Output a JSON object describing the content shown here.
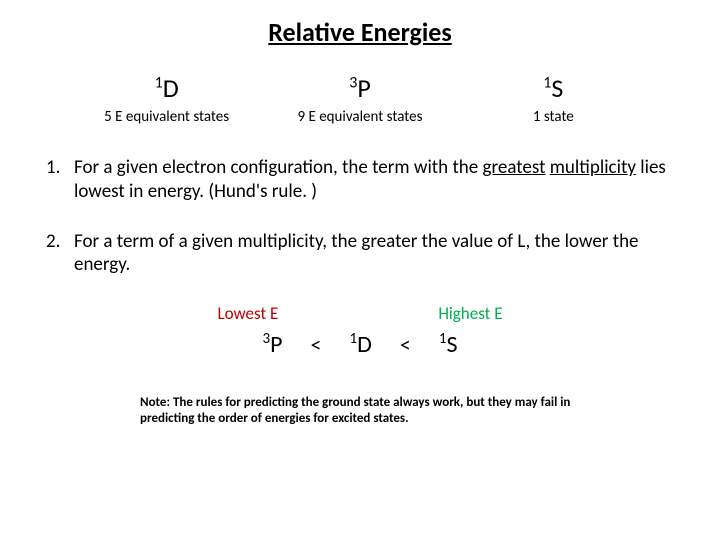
{
  "title": "Relative Energies",
  "terms": [
    {
      "sup": "1",
      "letter": "D",
      "states": "5 E equivalent states"
    },
    {
      "sup": "3",
      "letter": "P",
      "states": "9 E equivalent states"
    },
    {
      "sup": "1",
      "letter": "S",
      "states": "1 state"
    }
  ],
  "rules": [
    {
      "num": "1.",
      "pre": "For a given electron configuration, the term with the ",
      "ul1": "greatest",
      "mid": " ",
      "ul2": "multiplicity",
      "post": " lies lowest in energy.  (Hund's rule. )"
    },
    {
      "num": "2.",
      "text": "For a term of a given multiplicity, the greater the value of L, the lower the energy."
    }
  ],
  "labels": {
    "lowest": "Lowest E",
    "highest": "Highest E"
  },
  "order": [
    {
      "sup": "3",
      "letter": "P"
    },
    {
      "sup": "1",
      "letter": "D"
    },
    {
      "sup": "1",
      "letter": "S"
    }
  ],
  "lt": "<",
  "note": "Note: The rules for predicting the ground state always work, but they may fail in predicting the order of energies for excited states.",
  "colors": {
    "lowest": "#c00000",
    "highest": "#00b050",
    "text": "#000000",
    "background": "#ffffff"
  },
  "fontsize": {
    "title": 26,
    "term": 26,
    "state": 15,
    "rule": 19,
    "label": 17,
    "order": 24,
    "note": 13
  }
}
